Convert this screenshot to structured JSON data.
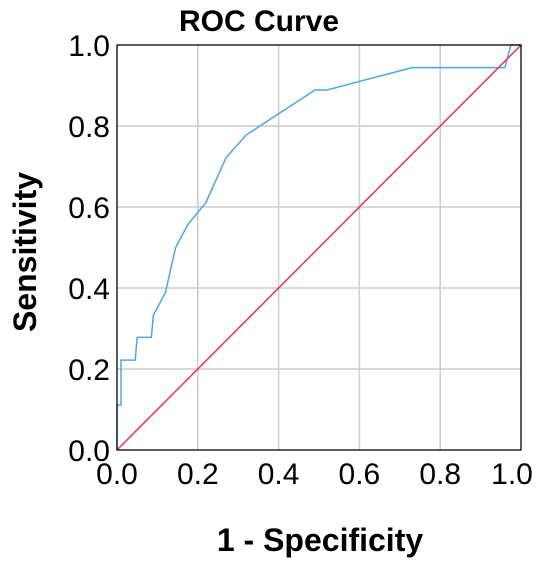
{
  "chart_data": {
    "type": "line",
    "title": "ROC Curve",
    "xlabel": "1 - Specificity",
    "ylabel": "Sensitivity",
    "xlim": [
      0.0,
      1.0
    ],
    "ylim": [
      0.0,
      1.0
    ],
    "x_ticks": [
      "0.0",
      "0.2",
      "0.4",
      "0.6",
      "0.8",
      "1.0"
    ],
    "y_ticks": [
      "0.0",
      "0.2",
      "0.4",
      "0.6",
      "0.8",
      "1.0"
    ],
    "grid": true,
    "legend": "none",
    "series": [
      {
        "color": "#4da6e8",
        "x": [
          0.0,
          0.0,
          0.01,
          0.01,
          0.045,
          0.05,
          0.085,
          0.09,
          0.12,
          0.145,
          0.175,
          0.22,
          0.27,
          0.32,
          0.49,
          0.52,
          0.73,
          0.96,
          0.975,
          1.0
        ],
        "y": [
          0.0,
          0.111,
          0.111,
          0.222,
          0.222,
          0.278,
          0.278,
          0.333,
          0.389,
          0.5,
          0.556,
          0.611,
          0.722,
          0.778,
          0.889,
          0.889,
          0.944,
          0.944,
          1.0,
          1.0
        ]
      },
      {
        "color": "#e8325a",
        "x": [
          0.0,
          1.0
        ],
        "y": [
          0.0,
          1.0
        ]
      }
    ]
  }
}
